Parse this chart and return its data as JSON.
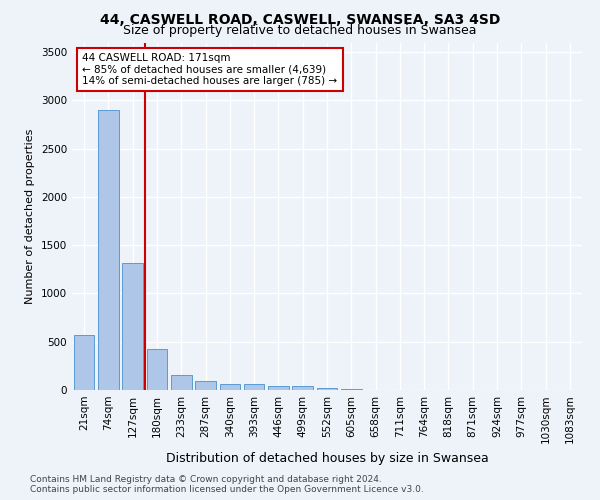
{
  "title": "44, CASWELL ROAD, CASWELL, SWANSEA, SA3 4SD",
  "subtitle": "Size of property relative to detached houses in Swansea",
  "xlabel": "Distribution of detached houses by size in Swansea",
  "ylabel": "Number of detached properties",
  "categories": [
    "21sqm",
    "74sqm",
    "127sqm",
    "180sqm",
    "233sqm",
    "287sqm",
    "340sqm",
    "393sqm",
    "446sqm",
    "499sqm",
    "552sqm",
    "605sqm",
    "658sqm",
    "711sqm",
    "764sqm",
    "818sqm",
    "871sqm",
    "924sqm",
    "977sqm",
    "1030sqm",
    "1083sqm"
  ],
  "values": [
    570,
    2900,
    1320,
    420,
    155,
    90,
    65,
    58,
    45,
    40,
    18,
    12,
    0,
    0,
    0,
    0,
    0,
    0,
    0,
    0,
    0
  ],
  "bar_color": "#aec6e8",
  "bar_edge_color": "#5b9bd5",
  "vline_color": "#cc0000",
  "annotation_text": "44 CASWELL ROAD: 171sqm\n← 85% of detached houses are smaller (4,639)\n14% of semi-detached houses are larger (785) →",
  "annotation_box_color": "#ffffff",
  "annotation_box_edge": "#cc0000",
  "ylim": [
    0,
    3600
  ],
  "yticks": [
    0,
    500,
    1000,
    1500,
    2000,
    2500,
    3000,
    3500
  ],
  "background_color": "#eef2f9",
  "grid_color": "#ffffff",
  "footer": "Contains HM Land Registry data © Crown copyright and database right 2024.\nContains public sector information licensed under the Open Government Licence v3.0.",
  "title_fontsize": 10,
  "subtitle_fontsize": 9,
  "xlabel_fontsize": 9,
  "ylabel_fontsize": 8,
  "tick_fontsize": 7.5,
  "footer_fontsize": 6.5,
  "annotation_fontsize": 7.5
}
